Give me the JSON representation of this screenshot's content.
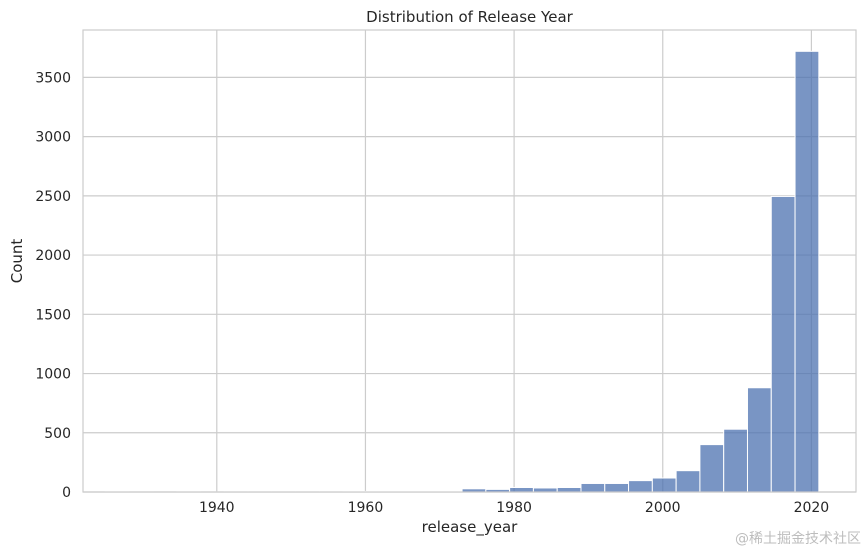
{
  "chart_data": {
    "type": "bar",
    "title": "Distribution of Release Year",
    "xlabel": "release_year",
    "ylabel": "Count",
    "bin_width": 3.2,
    "bins_start": [
      1925.0,
      1928.2,
      1931.4,
      1934.6,
      1937.8,
      1941.0,
      1944.2,
      1947.4,
      1950.6,
      1953.8,
      1957.0,
      1960.2,
      1963.4,
      1966.6,
      1969.8,
      1973.0,
      1976.2,
      1979.4,
      1982.6,
      1985.8,
      1989.0,
      1992.2,
      1995.4,
      1998.6,
      2001.8,
      2005.0,
      2008.2,
      2011.4,
      2014.6,
      2017.8
    ],
    "values": [
      2,
      1,
      0,
      2,
      1,
      3,
      3,
      2,
      3,
      3,
      5,
      5,
      6,
      8,
      8,
      27,
      22,
      38,
      34,
      38,
      72,
      72,
      96,
      118,
      180,
      400,
      530,
      880,
      2495,
      3720
    ],
    "xlim": [
      1922,
      2026
    ],
    "ylim": [
      0,
      3900
    ],
    "xticks": [
      1940,
      1960,
      1980,
      2000,
      2020
    ],
    "yticks": [
      0,
      500,
      1000,
      1500,
      2000,
      2500,
      3000,
      3500
    ],
    "grid": true,
    "bar_color": "#4c72b0",
    "grid_color": "#cccccc"
  },
  "watermark": "@稀土掘金技术社区"
}
